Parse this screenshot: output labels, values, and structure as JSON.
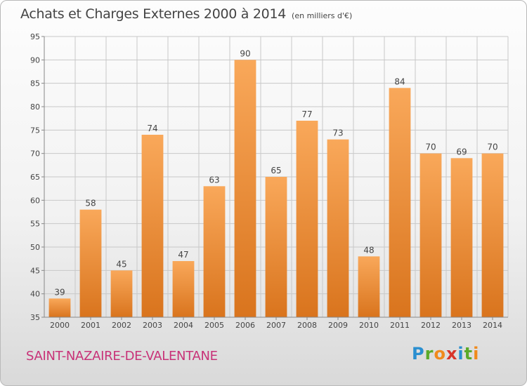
{
  "title": "Achats et Charges Externes 2000 à 2014",
  "unit_label": "(en milliers d'€)",
  "commune": "SAINT-NAZAIRE-DE-VALENTANE",
  "logo": {
    "letters": [
      "P",
      "r",
      "o",
      "x",
      "i",
      "t",
      "i"
    ],
    "colors": [
      "#2a8fd0",
      "#5aaa2a",
      "#f08a1c",
      "#d8342a",
      "#2a8fd0",
      "#5aaa2a",
      "#f08a1c"
    ]
  },
  "colors": {
    "bar_light": "#f9a85a",
    "bar_dark": "#d9741d",
    "grid": "#c8c8c8"
  },
  "chart_data": {
    "type": "bar",
    "title": "Achats et Charges Externes 2000 à 2014",
    "xlabel": "",
    "ylabel": "",
    "categories": [
      "2000",
      "2001",
      "2002",
      "2003",
      "2004",
      "2005",
      "2006",
      "2007",
      "2008",
      "2009",
      "2010",
      "2011",
      "2012",
      "2013",
      "2014"
    ],
    "values": [
      39,
      58,
      45,
      74,
      47,
      63,
      90,
      65,
      77,
      73,
      48,
      84,
      70,
      69,
      70
    ],
    "ylim": [
      35,
      95
    ],
    "yticks": [
      35,
      40,
      45,
      50,
      55,
      60,
      65,
      70,
      75,
      80,
      85,
      90,
      95
    ],
    "grid": true
  }
}
